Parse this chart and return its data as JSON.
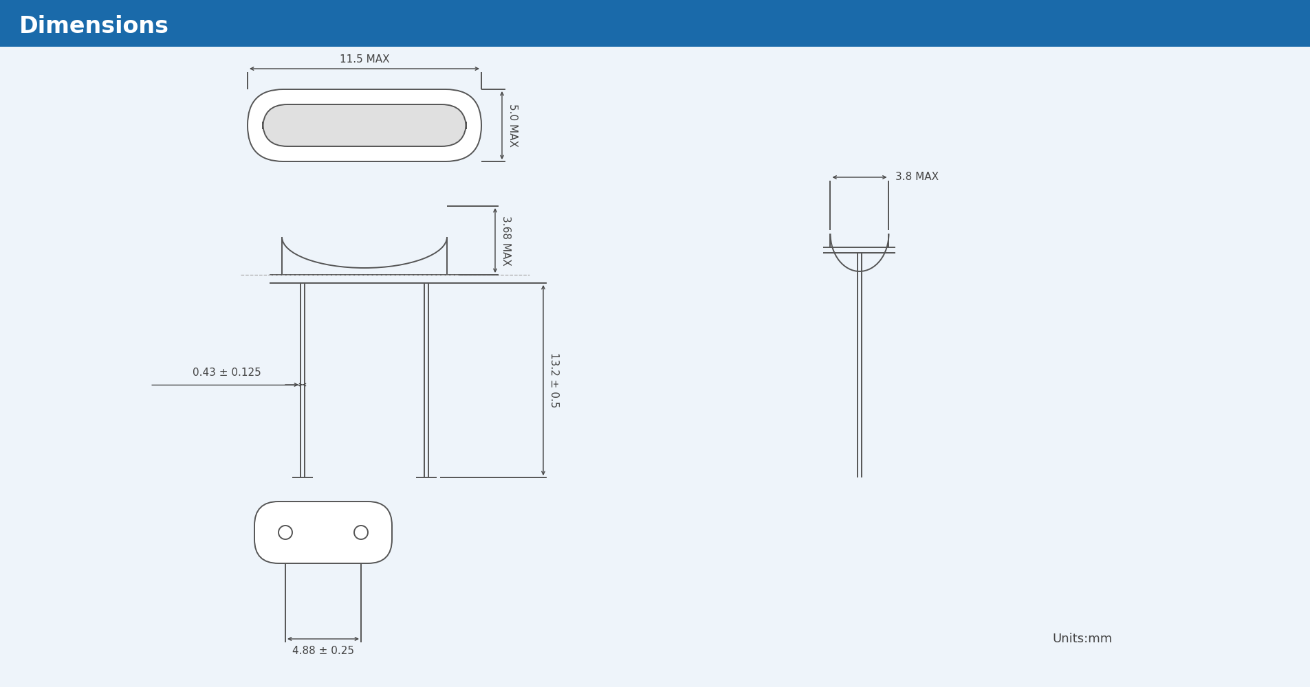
{
  "title": "Dimensions",
  "title_bg_color": "#1A6AAA",
  "title_text_color": "#FFFFFF",
  "bg_color": "#EEF4FA",
  "line_color": "#555555",
  "dim_color": "#444444",
  "font_size_title": 24,
  "font_size_dim": 11,
  "font_size_units": 13,
  "dim_11_5": "11.5 MAX",
  "dim_5_0": "5.0 MAX",
  "dim_3_68": "3.68 MAX",
  "dim_13_2": "13.2 ± 0.5",
  "dim_0_43": "0.43 ± 0.125",
  "dim_4_88": "4.88 ± 0.25",
  "dim_3_8": "3.8 MAX",
  "units": "Units:mm"
}
